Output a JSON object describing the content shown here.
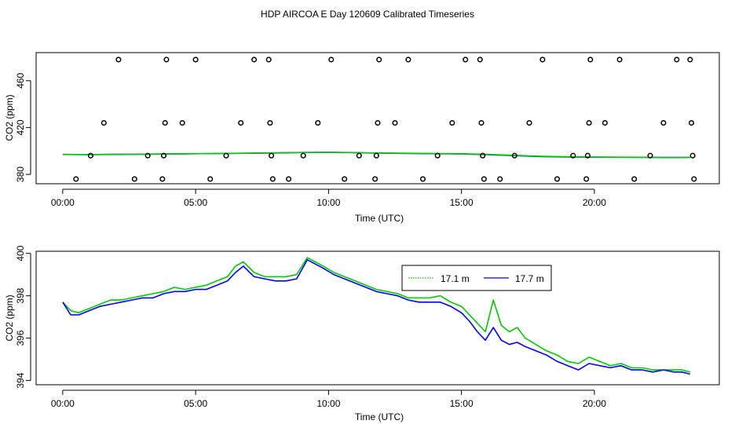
{
  "figure": {
    "title": "HDP AIRCOA E  Day 120609  Calibrated Timeseries"
  },
  "chart_data": [
    {
      "type": "scatter",
      "xlabel": "Time (UTC)",
      "ylabel": "CO2 (ppm)",
      "xlim": [
        -1.0,
        24.7
      ],
      "ylim": [
        372,
        484
      ],
      "x_ticks": [
        0,
        5,
        10,
        15,
        20
      ],
      "x_tick_labels": [
        "00:00",
        "05:00",
        "10:00",
        "15:00",
        "20:00"
      ],
      "y_ticks": [
        380,
        420,
        460
      ],
      "y_tick_labels": [
        "380",
        "420",
        "460"
      ],
      "grid": false,
      "points": [
        {
          "x": 0.5,
          "y": 376
        },
        {
          "x": 1.05,
          "y": 396
        },
        {
          "x": 1.55,
          "y": 424
        },
        {
          "x": 2.1,
          "y": 478
        },
        {
          "x": 2.7,
          "y": 376
        },
        {
          "x": 3.2,
          "y": 396
        },
        {
          "x": 3.75,
          "y": 376
        },
        {
          "x": 3.8,
          "y": 396
        },
        {
          "x": 3.85,
          "y": 424
        },
        {
          "x": 3.9,
          "y": 478
        },
        {
          "x": 4.5,
          "y": 424
        },
        {
          "x": 5.0,
          "y": 478
        },
        {
          "x": 5.55,
          "y": 376
        },
        {
          "x": 6.15,
          "y": 396
        },
        {
          "x": 6.7,
          "y": 424
        },
        {
          "x": 7.2,
          "y": 478
        },
        {
          "x": 7.75,
          "y": 478
        },
        {
          "x": 7.8,
          "y": 424
        },
        {
          "x": 7.85,
          "y": 396
        },
        {
          "x": 7.9,
          "y": 376
        },
        {
          "x": 8.5,
          "y": 376
        },
        {
          "x": 9.05,
          "y": 396
        },
        {
          "x": 9.6,
          "y": 424
        },
        {
          "x": 10.1,
          "y": 478
        },
        {
          "x": 10.6,
          "y": 376
        },
        {
          "x": 11.15,
          "y": 396
        },
        {
          "x": 11.75,
          "y": 376
        },
        {
          "x": 11.8,
          "y": 396
        },
        {
          "x": 11.85,
          "y": 424
        },
        {
          "x": 11.9,
          "y": 478
        },
        {
          "x": 12.5,
          "y": 424
        },
        {
          "x": 13.0,
          "y": 478
        },
        {
          "x": 13.55,
          "y": 376
        },
        {
          "x": 14.1,
          "y": 396
        },
        {
          "x": 14.65,
          "y": 424
        },
        {
          "x": 15.15,
          "y": 478
        },
        {
          "x": 15.7,
          "y": 478
        },
        {
          "x": 15.75,
          "y": 424
        },
        {
          "x": 15.8,
          "y": 396
        },
        {
          "x": 15.85,
          "y": 376
        },
        {
          "x": 16.45,
          "y": 376
        },
        {
          "x": 17.0,
          "y": 396
        },
        {
          "x": 17.55,
          "y": 424
        },
        {
          "x": 18.05,
          "y": 478
        },
        {
          "x": 18.6,
          "y": 376
        },
        {
          "x": 19.2,
          "y": 396
        },
        {
          "x": 19.7,
          "y": 376
        },
        {
          "x": 19.75,
          "y": 396
        },
        {
          "x": 19.8,
          "y": 424
        },
        {
          "x": 19.85,
          "y": 478
        },
        {
          "x": 20.4,
          "y": 424
        },
        {
          "x": 20.95,
          "y": 478
        },
        {
          "x": 21.5,
          "y": 376
        },
        {
          "x": 22.1,
          "y": 396
        },
        {
          "x": 22.6,
          "y": 424
        },
        {
          "x": 23.1,
          "y": 478
        },
        {
          "x": 23.6,
          "y": 478
        },
        {
          "x": 23.65,
          "y": 424
        },
        {
          "x": 23.7,
          "y": 396
        },
        {
          "x": 23.75,
          "y": 376
        }
      ],
      "lines": [
        {
          "color": "#0000ff",
          "x": [
            0,
            1,
            2,
            3,
            4,
            5,
            6,
            7,
            8,
            9,
            10,
            11,
            12,
            13,
            14,
            15,
            16,
            17,
            18,
            19,
            20,
            21,
            22,
            23,
            23.6
          ],
          "y": [
            397.0,
            396.8,
            397.1,
            397.2,
            397.4,
            397.6,
            397.8,
            398.0,
            398.3,
            398.6,
            398.8,
            398.5,
            398.1,
            397.9,
            397.7,
            397.4,
            396.8,
            396.0,
            395.2,
            394.9,
            394.7,
            394.6,
            394.5,
            394.4,
            394.5
          ]
        },
        {
          "color": "#00cc00",
          "x": [
            0,
            1,
            2,
            3,
            4,
            5,
            6,
            7,
            8,
            9,
            10,
            11,
            12,
            13,
            14,
            15,
            16,
            17,
            18,
            19,
            20,
            21,
            22,
            23,
            23.6
          ],
          "y": [
            397.1,
            396.9,
            397.2,
            397.3,
            397.5,
            397.7,
            397.9,
            398.1,
            398.4,
            398.7,
            398.9,
            398.6,
            398.2,
            398.0,
            397.8,
            397.6,
            397.1,
            396.3,
            395.4,
            395.0,
            394.8,
            394.7,
            394.6,
            394.5,
            394.6
          ]
        }
      ]
    },
    {
      "type": "line",
      "xlabel": "Time (UTC)",
      "ylabel": "CO2 (ppm)",
      "xlim": [
        -1.0,
        24.7
      ],
      "ylim": [
        393.8,
        400.1
      ],
      "x_ticks": [
        0,
        5,
        10,
        15,
        20
      ],
      "x_tick_labels": [
        "00:00",
        "05:00",
        "10:00",
        "15:00",
        "20:00"
      ],
      "y_ticks": [
        394,
        396,
        398,
        400
      ],
      "y_tick_labels": [
        "394",
        "396",
        "398",
        "400"
      ],
      "grid": false,
      "legend_position": "top-center",
      "series": [
        {
          "name": "17.1 m",
          "color": "#00cc00",
          "x": [
            0,
            0.3,
            0.6,
            1,
            1.4,
            1.8,
            2.2,
            2.6,
            3,
            3.4,
            3.8,
            4.2,
            4.6,
            5,
            5.4,
            5.8,
            6.2,
            6.5,
            6.8,
            7.2,
            7.6,
            8,
            8.4,
            8.8,
            9.2,
            9.5,
            9.8,
            10.2,
            10.6,
            11,
            11.4,
            11.8,
            12.2,
            12.6,
            13,
            13.4,
            13.8,
            14.2,
            14.6,
            15,
            15.3,
            15.6,
            15.9,
            16.2,
            16.5,
            16.8,
            17.1,
            17.4,
            17.8,
            18.2,
            18.6,
            19,
            19.4,
            19.8,
            20.2,
            20.6,
            21,
            21.4,
            21.8,
            22.2,
            22.6,
            23,
            23.3,
            23.6
          ],
          "y": [
            397.7,
            397.3,
            397.2,
            397.4,
            397.6,
            397.8,
            397.8,
            397.9,
            398.0,
            398.1,
            398.2,
            398.4,
            398.3,
            398.4,
            398.5,
            398.7,
            398.9,
            399.4,
            399.6,
            399.1,
            398.9,
            398.9,
            398.9,
            399.0,
            399.8,
            399.6,
            399.4,
            399.1,
            398.9,
            398.7,
            398.5,
            398.3,
            398.2,
            398.1,
            397.9,
            397.9,
            397.9,
            398.0,
            397.7,
            397.5,
            397.1,
            396.7,
            396.3,
            397.8,
            396.6,
            396.3,
            396.5,
            396.0,
            395.7,
            395.4,
            395.2,
            394.9,
            394.8,
            395.1,
            394.9,
            394.7,
            394.8,
            394.6,
            394.6,
            394.5,
            394.5,
            394.5,
            394.5,
            394.4
          ]
        },
        {
          "name": "17.7 m",
          "color": "#0000ff",
          "x": [
            0,
            0.3,
            0.6,
            1,
            1.4,
            1.8,
            2.2,
            2.6,
            3,
            3.4,
            3.8,
            4.2,
            4.6,
            5,
            5.4,
            5.8,
            6.2,
            6.5,
            6.8,
            7.2,
            7.6,
            8,
            8.4,
            8.8,
            9.2,
            9.5,
            9.8,
            10.2,
            10.6,
            11,
            11.4,
            11.8,
            12.2,
            12.6,
            13,
            13.4,
            13.8,
            14.2,
            14.6,
            15,
            15.3,
            15.6,
            15.9,
            16.2,
            16.5,
            16.8,
            17.1,
            17.4,
            17.8,
            18.2,
            18.6,
            19,
            19.4,
            19.8,
            20.2,
            20.6,
            21,
            21.4,
            21.8,
            22.2,
            22.6,
            23,
            23.3,
            23.6
          ],
          "y": [
            397.7,
            397.1,
            397.1,
            397.3,
            397.5,
            397.6,
            397.7,
            397.8,
            397.9,
            397.9,
            398.1,
            398.2,
            398.2,
            398.3,
            398.3,
            398.5,
            398.7,
            399.1,
            399.4,
            398.9,
            398.8,
            398.7,
            398.7,
            398.8,
            399.7,
            399.5,
            399.3,
            399.0,
            398.8,
            398.6,
            398.4,
            398.2,
            398.1,
            398.0,
            397.8,
            397.7,
            397.7,
            397.7,
            397.5,
            397.2,
            396.8,
            396.3,
            395.9,
            396.5,
            395.9,
            395.7,
            395.8,
            395.6,
            395.4,
            395.2,
            394.9,
            394.7,
            394.5,
            394.8,
            394.7,
            394.6,
            394.7,
            394.5,
            394.5,
            394.4,
            394.5,
            394.4,
            394.4,
            394.3
          ]
        }
      ]
    }
  ]
}
